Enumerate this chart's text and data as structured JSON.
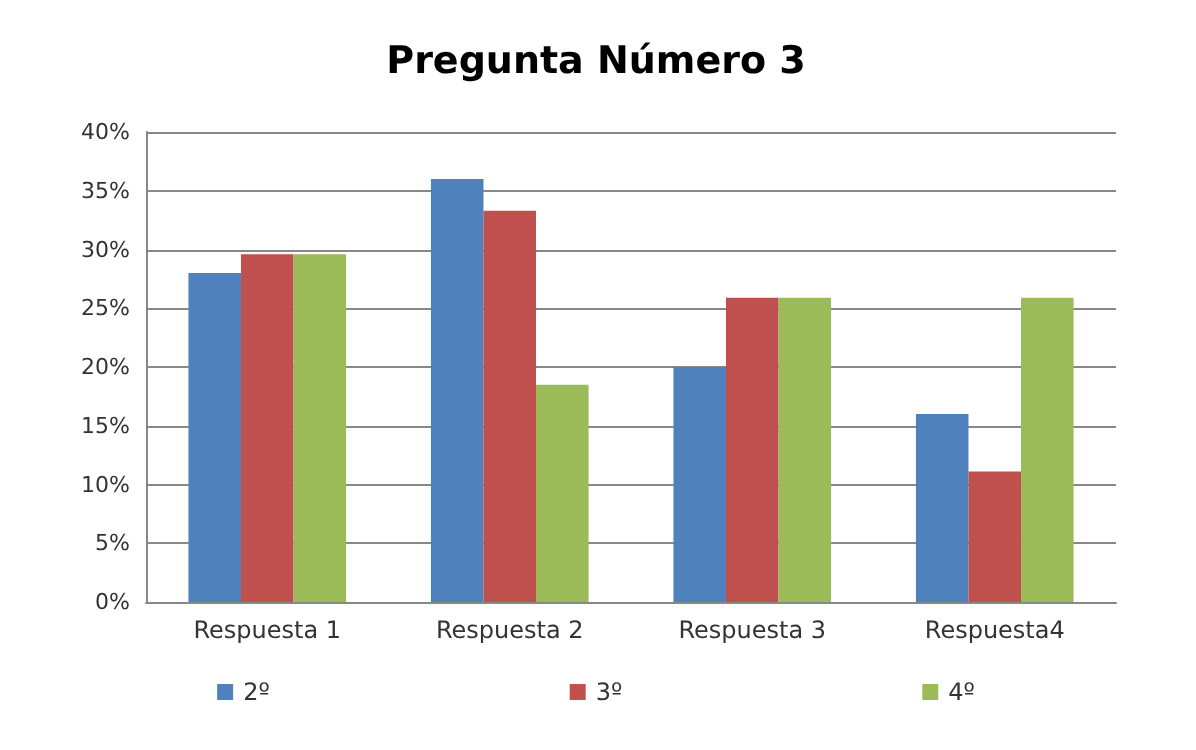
{
  "chart_data": {
    "type": "bar",
    "title": "Pregunta Número 3",
    "categories": [
      "Respuesta 1",
      "Respuesta 2",
      "Respuesta 3",
      "Respuesta4"
    ],
    "series": [
      {
        "name": "2º",
        "color": "#4f81bd",
        "values": [
          28,
          36,
          20,
          16
        ]
      },
      {
        "name": "3º",
        "color": "#c0504d",
        "values": [
          29.6,
          33.3,
          25.9,
          11.1
        ]
      },
      {
        "name": "4º",
        "color": "#9bbb59",
        "values": [
          29.6,
          18.5,
          25.9,
          25.9
        ]
      }
    ],
    "ylim": [
      0,
      40
    ],
    "yticks": [
      {
        "value": 0,
        "label": "0%"
      },
      {
        "value": 5,
        "label": "5%"
      },
      {
        "value": 10,
        "label": "10%"
      },
      {
        "value": 15,
        "label": "15%"
      },
      {
        "value": 20,
        "label": "20%"
      },
      {
        "value": 25,
        "label": "25%"
      },
      {
        "value": 30,
        "label": "30%"
      },
      {
        "value": 35,
        "label": "35%"
      },
      {
        "value": 40,
        "label": "40%"
      }
    ],
    "grid": "y",
    "legend": "bottom"
  }
}
